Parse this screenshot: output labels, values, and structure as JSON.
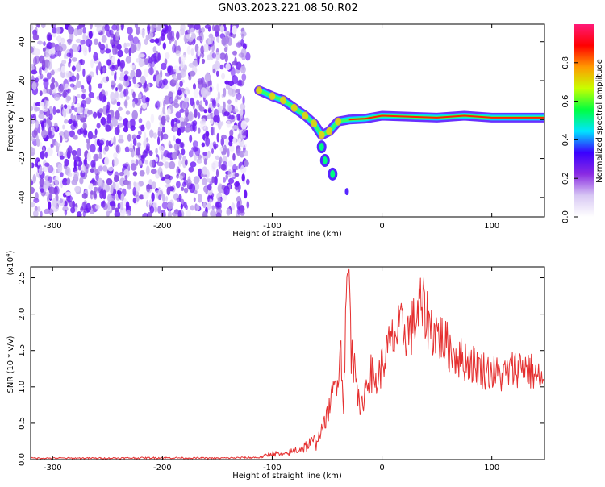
{
  "title": "GN03.2023.221.08.50.R02",
  "chart_data": [
    {
      "type": "heatmap",
      "xlabel": "Height of straight line (km)",
      "ylabel": "Frequency (Hz)",
      "xlim": [
        -320,
        148
      ],
      "ylim": [
        -50,
        49
      ],
      "x_ticks": [
        -300,
        -200,
        -100,
        0,
        100
      ],
      "y_ticks": [
        40,
        20,
        0,
        -20,
        -40
      ],
      "colorbar": {
        "label": "Normalized spectral amplitude",
        "range": [
          0.0,
          1.0
        ],
        "ticks": [
          "0.0",
          "0.2",
          "0.4",
          "0.6",
          "0.8"
        ],
        "colors": [
          "#ffffff",
          "#d8c8f4",
          "#8a2be2",
          "#3a00ff",
          "#00e5ff",
          "#00ff40",
          "#c8ff00",
          "#ff9a00",
          "#ff0000",
          "#ff1a78"
        ]
      },
      "noise_region": {
        "x_range": [
          -320,
          -122
        ],
        "freq_range": [
          -50,
          49
        ]
      },
      "ridge": [
        {
          "x": -112,
          "f": 15
        },
        {
          "x": -100,
          "f": 12
        },
        {
          "x": -90,
          "f": 10
        },
        {
          "x": -80,
          "f": 6
        },
        {
          "x": -70,
          "f": 2
        },
        {
          "x": -62,
          "f": -2
        },
        {
          "x": -55,
          "f": -8
        },
        {
          "x": -48,
          "f": -6
        },
        {
          "x": -40,
          "f": -1
        },
        {
          "x": -30,
          "f": 0
        },
        {
          "x": -15,
          "f": 0.5
        },
        {
          "x": 0,
          "f": 2
        },
        {
          "x": 50,
          "f": 1
        },
        {
          "x": 75,
          "f": 2
        },
        {
          "x": 100,
          "f": 1
        },
        {
          "x": 148,
          "f": 1
        }
      ],
      "branch": [
        {
          "x": -55,
          "f": -14
        },
        {
          "x": -52,
          "f": -21
        },
        {
          "x": -45,
          "f": -28
        },
        {
          "x": -32,
          "f": -37
        }
      ]
    },
    {
      "type": "line",
      "xlabel": "Height of straight line (km)",
      "ylabel": "SNR (10 * v/v)",
      "y_multiplier": "(x10",
      "y_multiplier_exp": "4",
      "y_multiplier_close": ")",
      "xlim": [
        -320,
        148
      ],
      "ylim": [
        0,
        26500
      ],
      "x_ticks": [
        -300,
        -200,
        -100,
        0,
        100
      ],
      "y_ticks": [
        0.0,
        0.5,
        1.0,
        1.5,
        2.0,
        2.5
      ],
      "series": [
        {
          "color": "#e53030",
          "x": [
            -320,
            -250,
            -200,
            -150,
            -110,
            -100,
            -90,
            -80,
            -70,
            -60,
            -55,
            -50,
            -45,
            -40,
            -38,
            -35,
            -32,
            -30,
            -28,
            -26,
            -25,
            -22,
            -20,
            -15,
            -10,
            -5,
            0,
            5,
            10,
            15,
            20,
            25,
            30,
            35,
            40,
            45,
            50,
            60,
            70,
            80,
            90,
            100,
            110,
            120,
            130,
            140,
            148
          ],
          "values": [
            200,
            200,
            250,
            200,
            300,
            900,
            600,
            1200,
            1800,
            2500,
            4000,
            6000,
            9000,
            12000,
            16000,
            8000,
            24000,
            26000,
            15000,
            12000,
            16500,
            9000,
            6000,
            10000,
            12000,
            10500,
            13000,
            15000,
            16500,
            17500,
            18000,
            17500,
            19000,
            21000,
            20000,
            18000,
            17500,
            15500,
            14000,
            13500,
            12500,
            12000,
            11500,
            12500,
            13000,
            11500,
            10500
          ]
        }
      ]
    }
  ]
}
